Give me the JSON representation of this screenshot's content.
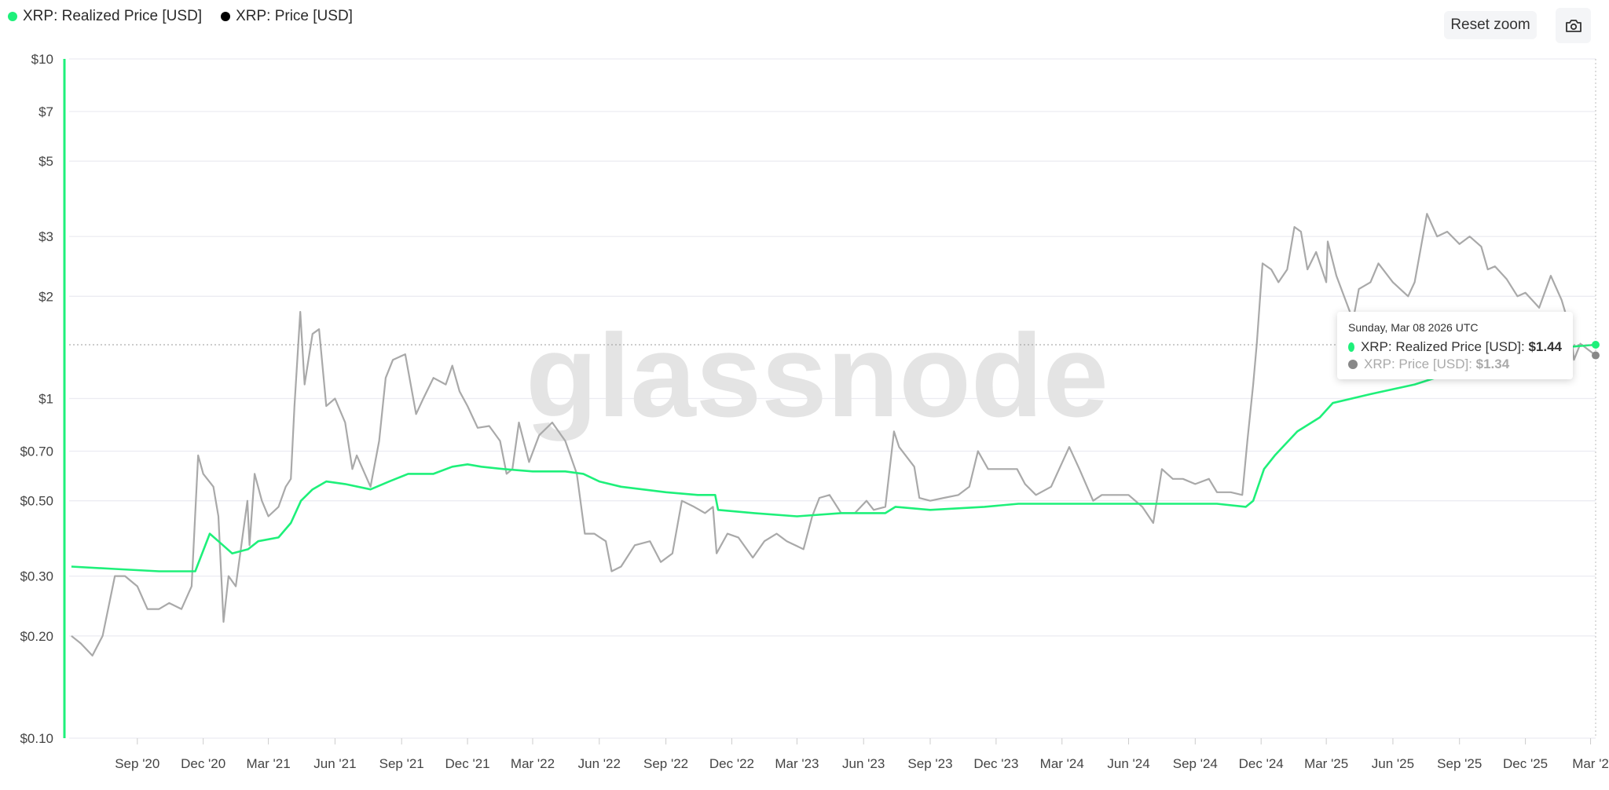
{
  "legend": [
    {
      "label": "XRP: Realized Price [USD]",
      "color": "#1ef07a"
    },
    {
      "label": "XRP: Price [USD]",
      "color": "#000000"
    }
  ],
  "toolbar": {
    "reset_zoom": "Reset zoom",
    "camera_icon": "camera-icon"
  },
  "watermark": "glassnode",
  "tooltip": {
    "date": "Sunday, Mar 08 2026 UTC",
    "rows": [
      {
        "label": "XRP: Realized Price [USD]: ",
        "value": "$1.44",
        "color": "#1ef07a"
      },
      {
        "label": "XRP: Price [USD]: ",
        "value": "$1.34",
        "color": "#888888"
      }
    ]
  },
  "chart_data": {
    "type": "line",
    "yscale": "log",
    "ylim": [
      0.1,
      10
    ],
    "xlim": [
      "2020-06-01",
      "2026-03-08"
    ],
    "grid": true,
    "legend_position": "top-left",
    "yticks": [
      {
        "v": 10,
        "label": "$10"
      },
      {
        "v": 7,
        "label": "$7"
      },
      {
        "v": 5,
        "label": "$5"
      },
      {
        "v": 3,
        "label": "$3"
      },
      {
        "v": 2,
        "label": "$2"
      },
      {
        "v": 1,
        "label": "$1"
      },
      {
        "v": 0.7,
        "label": "$0.70"
      },
      {
        "v": 0.5,
        "label": "$0.50"
      },
      {
        "v": 0.3,
        "label": "$0.30"
      },
      {
        "v": 0.2,
        "label": "$0.20"
      },
      {
        "v": 0.1,
        "label": "$0.10"
      }
    ],
    "xticks": [
      {
        "d": "2020-09-01",
        "label": "Sep '20"
      },
      {
        "d": "2020-12-01",
        "label": "Dec '20"
      },
      {
        "d": "2021-03-01",
        "label": "Mar '21"
      },
      {
        "d": "2021-06-01",
        "label": "Jun '21"
      },
      {
        "d": "2021-09-01",
        "label": "Sep '21"
      },
      {
        "d": "2021-12-01",
        "label": "Dec '21"
      },
      {
        "d": "2022-03-01",
        "label": "Mar '22"
      },
      {
        "d": "2022-06-01",
        "label": "Jun '22"
      },
      {
        "d": "2022-09-01",
        "label": "Sep '22"
      },
      {
        "d": "2022-12-01",
        "label": "Dec '22"
      },
      {
        "d": "2023-03-01",
        "label": "Mar '23"
      },
      {
        "d": "2023-06-01",
        "label": "Jun '23"
      },
      {
        "d": "2023-09-01",
        "label": "Sep '23"
      },
      {
        "d": "2023-12-01",
        "label": "Dec '23"
      },
      {
        "d": "2024-03-01",
        "label": "Mar '24"
      },
      {
        "d": "2024-06-01",
        "label": "Jun '24"
      },
      {
        "d": "2024-09-01",
        "label": "Sep '24"
      },
      {
        "d": "2024-12-01",
        "label": "Dec '24"
      },
      {
        "d": "2025-03-01",
        "label": "Mar '25"
      },
      {
        "d": "2025-06-01",
        "label": "Jun '25"
      },
      {
        "d": "2025-09-01",
        "label": "Sep '25"
      },
      {
        "d": "2025-12-01",
        "label": "Dec '25"
      },
      {
        "d": "2026-03-01",
        "label": "Mar '2"
      }
    ],
    "series": [
      {
        "name": "XRP: Realized Price [USD]",
        "color": "#1ef07a",
        "points": [
          [
            "2020-06-02",
            0.32
          ],
          [
            "2020-08-01",
            0.315
          ],
          [
            "2020-10-01",
            0.31
          ],
          [
            "2020-11-20",
            0.31
          ],
          [
            "2020-12-10",
            0.4
          ],
          [
            "2020-12-22",
            0.38
          ],
          [
            "2021-01-10",
            0.35
          ],
          [
            "2021-02-01",
            0.36
          ],
          [
            "2021-02-15",
            0.38
          ],
          [
            "2021-03-15",
            0.39
          ],
          [
            "2021-04-01",
            0.43
          ],
          [
            "2021-04-15",
            0.5
          ],
          [
            "2021-05-01",
            0.54
          ],
          [
            "2021-05-20",
            0.57
          ],
          [
            "2021-06-15",
            0.56
          ],
          [
            "2021-07-20",
            0.54
          ],
          [
            "2021-08-15",
            0.57
          ],
          [
            "2021-09-10",
            0.6
          ],
          [
            "2021-10-15",
            0.6
          ],
          [
            "2021-11-10",
            0.63
          ],
          [
            "2021-12-01",
            0.64
          ],
          [
            "2021-12-20",
            0.63
          ],
          [
            "2022-01-20",
            0.62
          ],
          [
            "2022-03-01",
            0.61
          ],
          [
            "2022-04-15",
            0.61
          ],
          [
            "2022-05-10",
            0.6
          ],
          [
            "2022-06-01",
            0.57
          ],
          [
            "2022-07-01",
            0.55
          ],
          [
            "2022-09-01",
            0.53
          ],
          [
            "2022-10-15",
            0.52
          ],
          [
            "2022-11-08",
            0.52
          ],
          [
            "2022-11-12",
            0.47
          ],
          [
            "2023-01-01",
            0.46
          ],
          [
            "2023-03-01",
            0.45
          ],
          [
            "2023-05-01",
            0.46
          ],
          [
            "2023-07-01",
            0.46
          ],
          [
            "2023-07-15",
            0.48
          ],
          [
            "2023-09-01",
            0.47
          ],
          [
            "2023-11-15",
            0.48
          ],
          [
            "2024-01-01",
            0.49
          ],
          [
            "2024-03-01",
            0.49
          ],
          [
            "2024-05-01",
            0.49
          ],
          [
            "2024-07-01",
            0.49
          ],
          [
            "2024-10-01",
            0.49
          ],
          [
            "2024-11-10",
            0.48
          ],
          [
            "2024-11-20",
            0.5
          ],
          [
            "2024-12-05",
            0.62
          ],
          [
            "2024-12-20",
            0.68
          ],
          [
            "2025-01-20",
            0.8
          ],
          [
            "2025-02-20",
            0.88
          ],
          [
            "2025-03-10",
            0.97
          ],
          [
            "2025-05-01",
            1.03
          ],
          [
            "2025-07-01",
            1.1
          ],
          [
            "2025-08-15",
            1.18
          ],
          [
            "2025-10-15",
            1.27
          ],
          [
            "2025-12-15",
            1.36
          ],
          [
            "2026-02-01",
            1.42
          ],
          [
            "2026-03-08",
            1.44
          ]
        ]
      },
      {
        "name": "XRP: Price [USD]",
        "color": "#a9a9a9",
        "points": [
          [
            "2020-06-02",
            0.2
          ],
          [
            "2020-06-15",
            0.19
          ],
          [
            "2020-07-01",
            0.175
          ],
          [
            "2020-07-15",
            0.2
          ],
          [
            "2020-08-01",
            0.3
          ],
          [
            "2020-08-15",
            0.3
          ],
          [
            "2020-09-01",
            0.28
          ],
          [
            "2020-09-15",
            0.24
          ],
          [
            "2020-10-01",
            0.24
          ],
          [
            "2020-10-15",
            0.25
          ],
          [
            "2020-11-01",
            0.24
          ],
          [
            "2020-11-15",
            0.28
          ],
          [
            "2020-11-24",
            0.68
          ],
          [
            "2020-12-01",
            0.6
          ],
          [
            "2020-12-15",
            0.55
          ],
          [
            "2020-12-22",
            0.45
          ],
          [
            "2020-12-29",
            0.22
          ],
          [
            "2021-01-05",
            0.3
          ],
          [
            "2021-01-15",
            0.28
          ],
          [
            "2021-01-31",
            0.5
          ],
          [
            "2021-02-03",
            0.37
          ],
          [
            "2021-02-10",
            0.6
          ],
          [
            "2021-02-20",
            0.5
          ],
          [
            "2021-03-01",
            0.45
          ],
          [
            "2021-03-15",
            0.48
          ],
          [
            "2021-03-25",
            0.55
          ],
          [
            "2021-04-01",
            0.58
          ],
          [
            "2021-04-06",
            0.95
          ],
          [
            "2021-04-14",
            1.8
          ],
          [
            "2021-04-20",
            1.1
          ],
          [
            "2021-05-01",
            1.55
          ],
          [
            "2021-05-10",
            1.6
          ],
          [
            "2021-05-20",
            0.95
          ],
          [
            "2021-06-01",
            1.0
          ],
          [
            "2021-06-15",
            0.85
          ],
          [
            "2021-06-25",
            0.62
          ],
          [
            "2021-07-01",
            0.68
          ],
          [
            "2021-07-20",
            0.55
          ],
          [
            "2021-08-01",
            0.75
          ],
          [
            "2021-08-10",
            1.15
          ],
          [
            "2021-08-20",
            1.3
          ],
          [
            "2021-09-06",
            1.35
          ],
          [
            "2021-09-21",
            0.9
          ],
          [
            "2021-10-01",
            1.0
          ],
          [
            "2021-10-15",
            1.15
          ],
          [
            "2021-11-01",
            1.1
          ],
          [
            "2021-11-10",
            1.25
          ],
          [
            "2021-11-20",
            1.05
          ],
          [
            "2021-12-01",
            0.95
          ],
          [
            "2021-12-15",
            0.82
          ],
          [
            "2021-12-31",
            0.83
          ],
          [
            "2022-01-15",
            0.75
          ],
          [
            "2022-01-24",
            0.6
          ],
          [
            "2022-02-01",
            0.62
          ],
          [
            "2022-02-10",
            0.85
          ],
          [
            "2022-02-24",
            0.65
          ],
          [
            "2022-03-10",
            0.78
          ],
          [
            "2022-03-28",
            0.85
          ],
          [
            "2022-04-15",
            0.75
          ],
          [
            "2022-05-01",
            0.6
          ],
          [
            "2022-05-12",
            0.4
          ],
          [
            "2022-05-25",
            0.4
          ],
          [
            "2022-06-10",
            0.38
          ],
          [
            "2022-06-18",
            0.31
          ],
          [
            "2022-07-01",
            0.32
          ],
          [
            "2022-07-20",
            0.37
          ],
          [
            "2022-08-10",
            0.38
          ],
          [
            "2022-08-25",
            0.33
          ],
          [
            "2022-09-10",
            0.35
          ],
          [
            "2022-09-23",
            0.5
          ],
          [
            "2022-10-10",
            0.48
          ],
          [
            "2022-10-25",
            0.46
          ],
          [
            "2022-11-05",
            0.48
          ],
          [
            "2022-11-10",
            0.35
          ],
          [
            "2022-11-25",
            0.4
          ],
          [
            "2022-12-10",
            0.39
          ],
          [
            "2022-12-30",
            0.34
          ],
          [
            "2023-01-15",
            0.38
          ],
          [
            "2023-02-01",
            0.4
          ],
          [
            "2023-02-15",
            0.38
          ],
          [
            "2023-03-10",
            0.36
          ],
          [
            "2023-03-22",
            0.45
          ],
          [
            "2023-04-01",
            0.51
          ],
          [
            "2023-04-15",
            0.52
          ],
          [
            "2023-05-01",
            0.46
          ],
          [
            "2023-05-20",
            0.46
          ],
          [
            "2023-06-05",
            0.5
          ],
          [
            "2023-06-15",
            0.47
          ],
          [
            "2023-07-01",
            0.48
          ],
          [
            "2023-07-13",
            0.8
          ],
          [
            "2023-07-20",
            0.72
          ],
          [
            "2023-08-10",
            0.63
          ],
          [
            "2023-08-17",
            0.51
          ],
          [
            "2023-09-01",
            0.5
          ],
          [
            "2023-09-20",
            0.51
          ],
          [
            "2023-10-10",
            0.52
          ],
          [
            "2023-10-25",
            0.55
          ],
          [
            "2023-11-06",
            0.7
          ],
          [
            "2023-11-20",
            0.62
          ],
          [
            "2023-12-10",
            0.62
          ],
          [
            "2023-12-30",
            0.62
          ],
          [
            "2024-01-10",
            0.56
          ],
          [
            "2024-01-25",
            0.52
          ],
          [
            "2024-02-15",
            0.55
          ],
          [
            "2024-03-11",
            0.72
          ],
          [
            "2024-03-25",
            0.62
          ],
          [
            "2024-04-13",
            0.5
          ],
          [
            "2024-04-25",
            0.52
          ],
          [
            "2024-05-15",
            0.52
          ],
          [
            "2024-06-01",
            0.52
          ],
          [
            "2024-06-20",
            0.48
          ],
          [
            "2024-07-05",
            0.43
          ],
          [
            "2024-07-17",
            0.62
          ],
          [
            "2024-08-01",
            0.58
          ],
          [
            "2024-08-15",
            0.58
          ],
          [
            "2024-09-01",
            0.56
          ],
          [
            "2024-09-20",
            0.58
          ],
          [
            "2024-10-01",
            0.53
          ],
          [
            "2024-10-20",
            0.53
          ],
          [
            "2024-11-05",
            0.52
          ],
          [
            "2024-11-12",
            0.75
          ],
          [
            "2024-11-20",
            1.1
          ],
          [
            "2024-11-25",
            1.45
          ],
          [
            "2024-12-03",
            2.5
          ],
          [
            "2024-12-15",
            2.4
          ],
          [
            "2024-12-25",
            2.2
          ],
          [
            "2025-01-06",
            2.4
          ],
          [
            "2025-01-16",
            3.2
          ],
          [
            "2025-01-25",
            3.1
          ],
          [
            "2025-02-03",
            2.4
          ],
          [
            "2025-02-15",
            2.7
          ],
          [
            "2025-03-01",
            2.2
          ],
          [
            "2025-03-03",
            2.9
          ],
          [
            "2025-03-15",
            2.3
          ],
          [
            "2025-04-07",
            1.7
          ],
          [
            "2025-04-15",
            2.1
          ],
          [
            "2025-05-01",
            2.2
          ],
          [
            "2025-05-12",
            2.5
          ],
          [
            "2025-06-01",
            2.2
          ],
          [
            "2025-06-22",
            2.0
          ],
          [
            "2025-07-01",
            2.2
          ],
          [
            "2025-07-18",
            3.5
          ],
          [
            "2025-08-01",
            3.0
          ],
          [
            "2025-08-15",
            3.1
          ],
          [
            "2025-09-01",
            2.85
          ],
          [
            "2025-09-15",
            3.0
          ],
          [
            "2025-10-01",
            2.8
          ],
          [
            "2025-10-10",
            2.4
          ],
          [
            "2025-10-20",
            2.45
          ],
          [
            "2025-11-05",
            2.25
          ],
          [
            "2025-11-20",
            2.0
          ],
          [
            "2025-12-01",
            2.05
          ],
          [
            "2025-12-20",
            1.85
          ],
          [
            "2026-01-05",
            2.3
          ],
          [
            "2026-01-20",
            1.95
          ],
          [
            "2026-02-01",
            1.6
          ],
          [
            "2026-02-06",
            1.3
          ],
          [
            "2026-02-15",
            1.45
          ],
          [
            "2026-03-08",
            1.34
          ]
        ]
      }
    ]
  }
}
